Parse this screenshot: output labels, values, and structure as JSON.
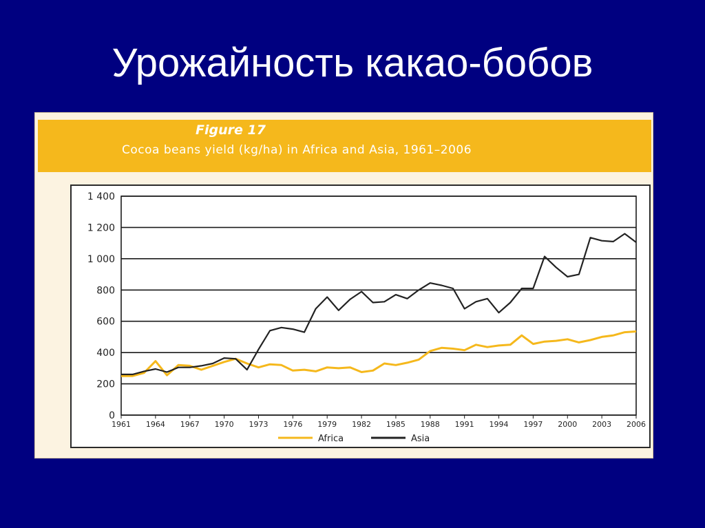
{
  "slide": {
    "title": "Урожайность какао-бобов"
  },
  "figure": {
    "label": "Figure 17",
    "caption": "Cocoa beans yield (kg/ha) in Africa and Asia, 1961–2006"
  },
  "chart_data": {
    "type": "line",
    "title": "Cocoa beans yield (kg/ha) in Africa and Asia, 1961–2006",
    "xlabel": "",
    "ylabel": "",
    "ylim": [
      0,
      1400
    ],
    "y_ticks": [
      0,
      200,
      400,
      600,
      800,
      1000,
      1200,
      1400
    ],
    "y_tick_labels": [
      "0",
      "200",
      "400",
      "600",
      "800",
      "1 000",
      "1 200",
      "1 400"
    ],
    "x_range": [
      1961,
      2006
    ],
    "x_ticks": [
      1961,
      1964,
      1967,
      1970,
      1973,
      1976,
      1979,
      1982,
      1985,
      1988,
      1991,
      1994,
      1997,
      2000,
      2003,
      2006
    ],
    "x_tick_labels": [
      "1961",
      "1964",
      "1967",
      "1970",
      "1973",
      "1976",
      "1979",
      "1982",
      "1985",
      "1988",
      "1991",
      "1994",
      "1997",
      "2000",
      "2003",
      "2006"
    ],
    "grid": "horizontal",
    "legend_position": "bottom",
    "x": [
      1961,
      1962,
      1963,
      1964,
      1965,
      1966,
      1967,
      1968,
      1969,
      1970,
      1971,
      1972,
      1973,
      1974,
      1975,
      1976,
      1977,
      1978,
      1979,
      1980,
      1981,
      1982,
      1983,
      1984,
      1985,
      1986,
      1987,
      1988,
      1989,
      1990,
      1991,
      1992,
      1993,
      1994,
      1995,
      1996,
      1997,
      1998,
      1999,
      2000,
      2001,
      2002,
      2003,
      2004,
      2005,
      2006
    ],
    "series": [
      {
        "name": "Africa",
        "color": "#f5b81c",
        "values": [
          250,
          250,
          270,
          345,
          255,
          320,
          315,
          290,
          315,
          340,
          360,
          330,
          305,
          325,
          320,
          285,
          290,
          280,
          305,
          300,
          305,
          275,
          285,
          330,
          320,
          335,
          355,
          410,
          430,
          425,
          415,
          450,
          435,
          445,
          450,
          510,
          455,
          470,
          475,
          485,
          465,
          480,
          500,
          510,
          530,
          535
        ]
      },
      {
        "name": "Asia",
        "color": "#222222",
        "values": [
          260,
          260,
          280,
          295,
          275,
          305,
          305,
          315,
          330,
          365,
          360,
          290,
          420,
          540,
          560,
          550,
          530,
          680,
          755,
          670,
          740,
          790,
          720,
          725,
          770,
          745,
          800,
          845,
          830,
          810,
          680,
          725,
          745,
          655,
          720,
          810,
          810,
          1015,
          945,
          885,
          900,
          1135,
          1115,
          1110,
          1160,
          1105
        ]
      }
    ]
  }
}
